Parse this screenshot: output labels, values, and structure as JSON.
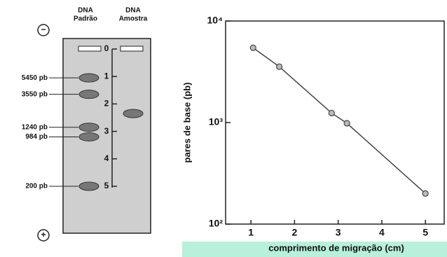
{
  "gel": {
    "minus": "−",
    "plus": "+",
    "lane_headers": [
      [
        "DNA",
        "Padrão"
      ],
      [
        "DNA",
        "Amostra"
      ]
    ],
    "scale_ticks": [
      0,
      1,
      2,
      3,
      4,
      5
    ],
    "standard_bands": [
      {
        "label": "5450 pb",
        "position": 1.05
      },
      {
        "label": "3550 pb",
        "position": 1.65
      },
      {
        "label": "1240 pb",
        "position": 2.85
      },
      {
        "label": "984 pb",
        "position": 3.2
      },
      {
        "label": "200 pb",
        "position": 5
      }
    ],
    "sample_bands": [
      {
        "position": 2.35
      }
    ]
  },
  "chart_data": {
    "type": "line",
    "x_label": "comprimento de migração (cm)",
    "y_label": "pares de base (pb)",
    "x": [
      1.05,
      1.65,
      2.85,
      3.2,
      5
    ],
    "values": [
      5450,
      3550,
      1240,
      984,
      200
    ],
    "color": "#444444",
    "marker_color": "#bbbbbb",
    "log_y": true,
    "xlim": [
      0.42,
      5.43
    ],
    "xticks": [
      1,
      2,
      3,
      4,
      5
    ],
    "ylim": [
      100,
      10000
    ],
    "yticks": [
      {
        "value": 100,
        "label": "10²"
      },
      {
        "value": 1000,
        "label": "10³"
      },
      {
        "value": 10000,
        "label": "10⁴"
      }
    ]
  }
}
